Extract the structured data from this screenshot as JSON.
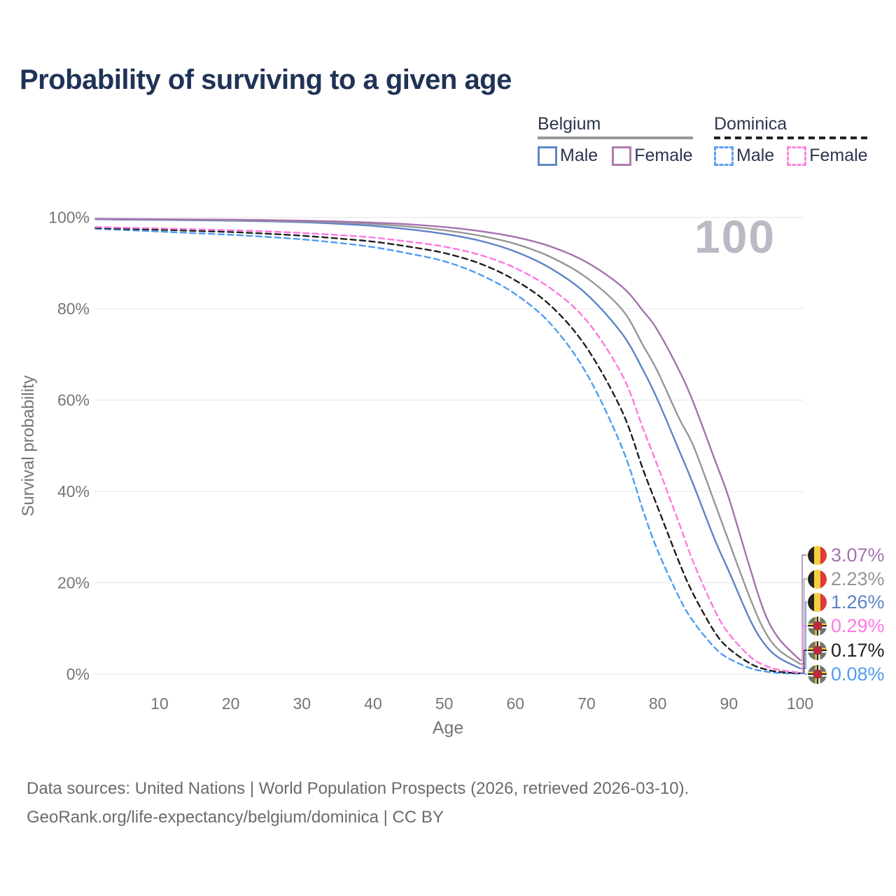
{
  "title": "Probability of surviving to a given age",
  "watermark": "100",
  "legend": {
    "belgium": {
      "label": "Belgium",
      "male_label": "Male",
      "female_label": "Female"
    },
    "dominica": {
      "label": "Dominica",
      "male_label": "Male",
      "female_label": "Female"
    }
  },
  "footer": {
    "line1": "Data sources: United Nations | World Population Prospects (2026, retrieved 2026-03-10).",
    "line2": "GeoRank.org/life-expectancy/belgium/dominica | CC BY"
  },
  "colors": {
    "title_text": "#203356",
    "legend_text": "#2a3550",
    "axis_text": "#757575",
    "grid": "#e9e9ec",
    "watermark": "#b9bac4",
    "footer_text": "#6b6b6b",
    "belgium_underline": "#9a9a9a",
    "dominica_underline": "#222222"
  },
  "chart_data": {
    "type": "line",
    "title": "Probability of surviving to a given age",
    "xlabel": "Age",
    "ylabel": "Survival probability",
    "xlim": [
      1,
      100
    ],
    "ylim": [
      0,
      100
    ],
    "x_ticks": [
      10,
      20,
      30,
      40,
      50,
      60,
      70,
      80,
      90,
      100
    ],
    "y_ticks": [
      0,
      20,
      40,
      60,
      80,
      100
    ],
    "y_tick_suffix": "%",
    "grid": true,
    "legend_position": "top-right",
    "series": [
      {
        "name": "Belgium Female",
        "country": "Belgium",
        "sex": "Female",
        "flag": "belgium",
        "color": "#a472ae",
        "line_style": "solid",
        "end_label": "3.07%",
        "points": [
          [
            1,
            99.7
          ],
          [
            5,
            99.65
          ],
          [
            10,
            99.6
          ],
          [
            15,
            99.55
          ],
          [
            20,
            99.5
          ],
          [
            25,
            99.42
          ],
          [
            30,
            99.3
          ],
          [
            35,
            99.12
          ],
          [
            40,
            98.85
          ],
          [
            45,
            98.5
          ],
          [
            50,
            97.9
          ],
          [
            55,
            97.0
          ],
          [
            60,
            95.7
          ],
          [
            65,
            93.6
          ],
          [
            70,
            90.2
          ],
          [
            75,
            84.8
          ],
          [
            78,
            79.4
          ],
          [
            80,
            75.2
          ],
          [
            83,
            66.5
          ],
          [
            85,
            59.5
          ],
          [
            88,
            47.0
          ],
          [
            90,
            38.5
          ],
          [
            93,
            23.0
          ],
          [
            95,
            13.5
          ],
          [
            97,
            7.8
          ],
          [
            100,
            3.07
          ]
        ]
      },
      {
        "name": "Belgium Both sexes",
        "country": "Belgium",
        "sex": "Both",
        "flag": "belgium",
        "color": "#969696",
        "line_style": "solid",
        "end_label": "2.23%",
        "points": [
          [
            1,
            99.65
          ],
          [
            5,
            99.6
          ],
          [
            10,
            99.5
          ],
          [
            15,
            99.45
          ],
          [
            20,
            99.38
          ],
          [
            25,
            99.28
          ],
          [
            30,
            99.15
          ],
          [
            35,
            98.9
          ],
          [
            40,
            98.55
          ],
          [
            45,
            98.0
          ],
          [
            50,
            97.2
          ],
          [
            55,
            96.0
          ],
          [
            60,
            94.2
          ],
          [
            65,
            91.3
          ],
          [
            70,
            86.8
          ],
          [
            75,
            79.8
          ],
          [
            78,
            71.8
          ],
          [
            80,
            66.2
          ],
          [
            83,
            56.0
          ],
          [
            85,
            50.0
          ],
          [
            88,
            37.5
          ],
          [
            90,
            29.0
          ],
          [
            93,
            16.5
          ],
          [
            95,
            9.5
          ],
          [
            97,
            5.3
          ],
          [
            100,
            2.23
          ]
        ]
      },
      {
        "name": "Belgium Male",
        "country": "Belgium",
        "sex": "Male",
        "flag": "belgium",
        "color": "#5b84c6",
        "line_style": "solid",
        "end_label": "1.26%",
        "points": [
          [
            1,
            99.6
          ],
          [
            5,
            99.5
          ],
          [
            10,
            99.45
          ],
          [
            15,
            99.38
          ],
          [
            20,
            99.28
          ],
          [
            25,
            99.15
          ],
          [
            30,
            98.95
          ],
          [
            35,
            98.6
          ],
          [
            40,
            98.15
          ],
          [
            45,
            97.4
          ],
          [
            50,
            96.4
          ],
          [
            55,
            94.9
          ],
          [
            60,
            92.5
          ],
          [
            65,
            88.8
          ],
          [
            70,
            83.2
          ],
          [
            75,
            74.5
          ],
          [
            78,
            66.4
          ],
          [
            80,
            60.0
          ],
          [
            83,
            49.0
          ],
          [
            85,
            41.5
          ],
          [
            88,
            29.5
          ],
          [
            90,
            22.5
          ],
          [
            93,
            11.8
          ],
          [
            95,
            6.6
          ],
          [
            97,
            3.6
          ],
          [
            100,
            1.26
          ]
        ]
      },
      {
        "name": "Dominica Female",
        "country": "Dominica",
        "sex": "Female",
        "flag": "dominica",
        "color": "#ff77e2",
        "line_style": "dashed",
        "end_label": "0.29%",
        "points": [
          [
            1,
            97.9
          ],
          [
            5,
            97.75
          ],
          [
            10,
            97.6
          ],
          [
            15,
            97.4
          ],
          [
            20,
            97.2
          ],
          [
            25,
            96.95
          ],
          [
            30,
            96.6
          ],
          [
            35,
            96.15
          ],
          [
            40,
            95.6
          ],
          [
            45,
            94.7
          ],
          [
            50,
            93.6
          ],
          [
            55,
            91.8
          ],
          [
            60,
            88.9
          ],
          [
            65,
            84.4
          ],
          [
            70,
            77.4
          ],
          [
            75,
            65.5
          ],
          [
            78,
            53.5
          ],
          [
            80,
            45.5
          ],
          [
            83,
            33.0
          ],
          [
            85,
            24.5
          ],
          [
            88,
            14.0
          ],
          [
            90,
            8.8
          ],
          [
            93,
            3.8
          ],
          [
            95,
            1.9
          ],
          [
            97,
            0.95
          ],
          [
            100,
            0.29
          ]
        ]
      },
      {
        "name": "Dominica Both sexes",
        "country": "Dominica",
        "sex": "Both",
        "flag": "dominica",
        "color": "#1f1f1f",
        "line_style": "dashed",
        "end_label": "0.17%",
        "points": [
          [
            1,
            97.7
          ],
          [
            5,
            97.5
          ],
          [
            10,
            97.3
          ],
          [
            15,
            97.05
          ],
          [
            20,
            96.8
          ],
          [
            25,
            96.45
          ],
          [
            30,
            96.0
          ],
          [
            35,
            95.4
          ],
          [
            40,
            94.7
          ],
          [
            45,
            93.6
          ],
          [
            50,
            92.2
          ],
          [
            55,
            89.9
          ],
          [
            60,
            86.2
          ],
          [
            65,
            80.6
          ],
          [
            70,
            71.5
          ],
          [
            75,
            57.5
          ],
          [
            78,
            44.5
          ],
          [
            80,
            36.5
          ],
          [
            83,
            24.5
          ],
          [
            85,
            17.5
          ],
          [
            88,
            9.2
          ],
          [
            90,
            5.6
          ],
          [
            93,
            2.3
          ],
          [
            95,
            1.1
          ],
          [
            97,
            0.5
          ],
          [
            100,
            0.17
          ]
        ]
      },
      {
        "name": "Dominica Male",
        "country": "Dominica",
        "sex": "Male",
        "flag": "dominica",
        "color": "#4f9cf2",
        "line_style": "dashed",
        "end_label": "0.08%",
        "points": [
          [
            1,
            97.5
          ],
          [
            5,
            97.25
          ],
          [
            10,
            96.9
          ],
          [
            15,
            96.55
          ],
          [
            20,
            96.2
          ],
          [
            25,
            95.75
          ],
          [
            30,
            95.2
          ],
          [
            35,
            94.45
          ],
          [
            40,
            93.5
          ],
          [
            45,
            92.1
          ],
          [
            50,
            90.4
          ],
          [
            55,
            87.5
          ],
          [
            60,
            83.2
          ],
          [
            65,
            76.6
          ],
          [
            70,
            65.8
          ],
          [
            75,
            49.5
          ],
          [
            78,
            35.5
          ],
          [
            80,
            27.0
          ],
          [
            83,
            16.8
          ],
          [
            85,
            11.5
          ],
          [
            88,
            5.8
          ],
          [
            90,
            3.4
          ],
          [
            93,
            1.3
          ],
          [
            95,
            0.6
          ],
          [
            97,
            0.25
          ],
          [
            100,
            0.08
          ]
        ]
      }
    ]
  }
}
